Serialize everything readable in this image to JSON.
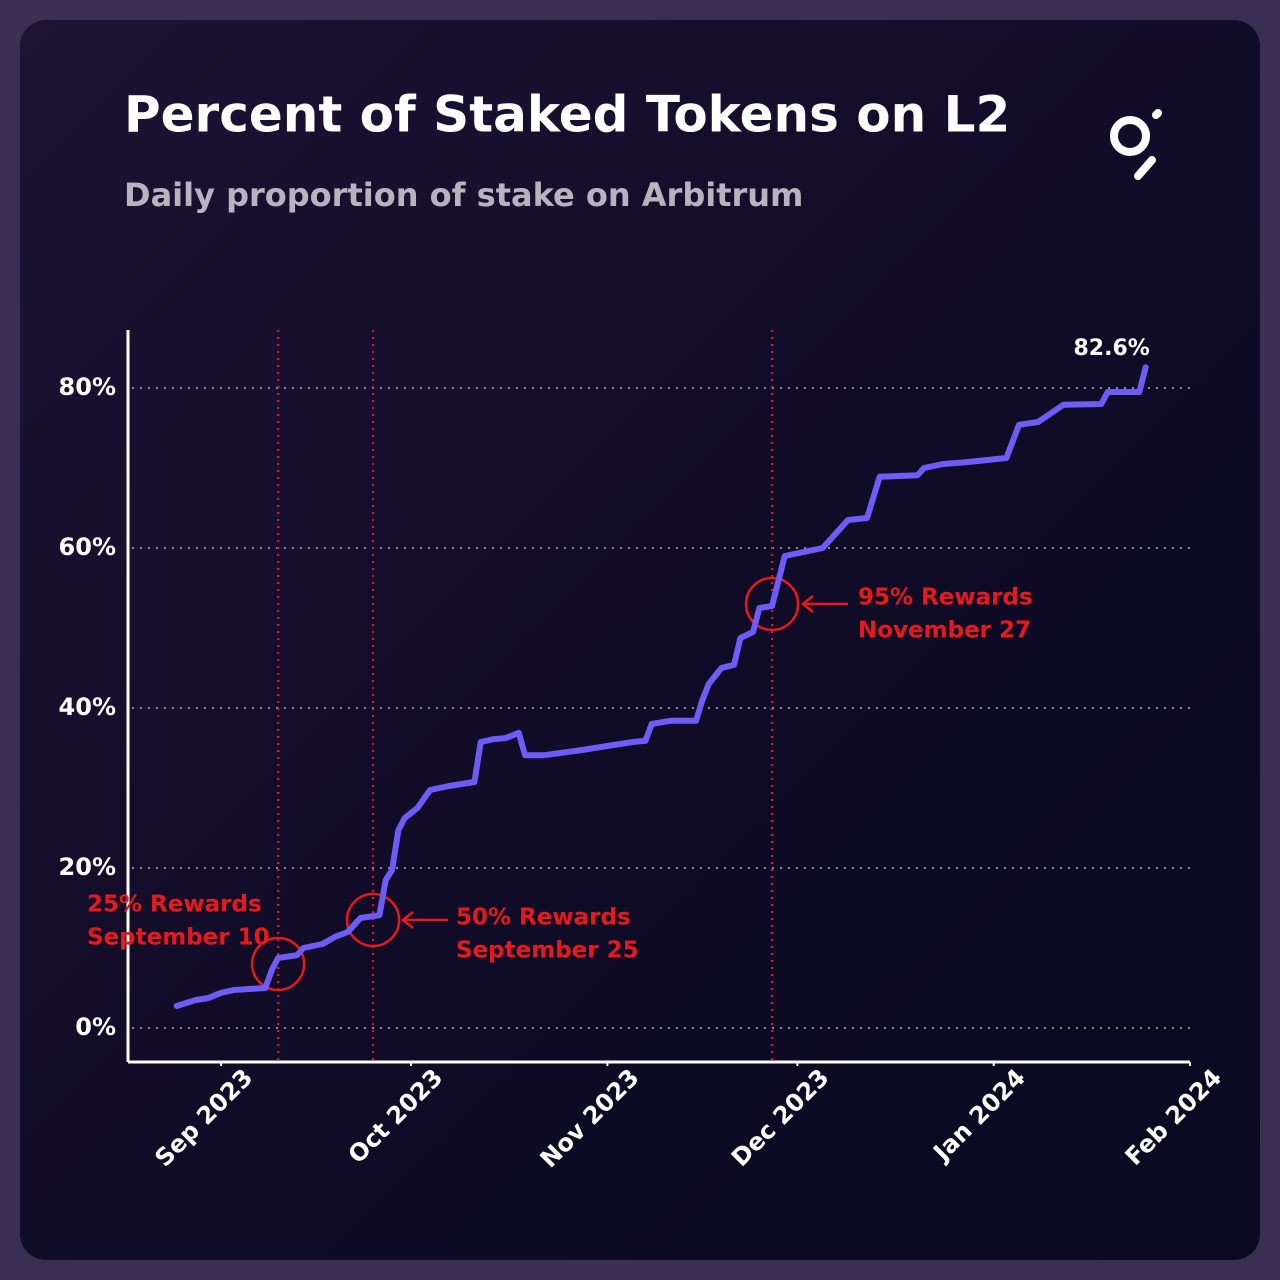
{
  "chart_data": {
    "type": "line",
    "title": "Percent of Staked Tokens on L2",
    "subtitle": "Daily proportion of stake on Arbitrum",
    "x": [
      -7,
      -4,
      -2,
      0,
      2,
      7,
      8,
      9,
      12,
      13,
      16,
      18,
      20,
      22,
      25,
      26,
      27,
      28,
      29,
      31,
      33,
      36,
      40,
      41,
      43,
      45,
      47,
      48,
      51,
      57,
      61,
      65,
      67,
      68,
      71,
      75,
      76,
      77,
      79,
      81,
      82,
      84,
      85,
      87,
      89,
      92,
      95,
      99,
      102,
      104,
      110,
      111,
      114,
      118,
      124,
      126,
      129,
      133,
      139,
      140,
      145,
      146
    ],
    "values": [
      2.75,
      3.5,
      3.75,
      4.4,
      4.75,
      5,
      7.25,
      8.75,
      9.1,
      10,
      10.5,
      11.4,
      12,
      13.75,
      14.1,
      18.5,
      19.75,
      24.75,
      26.25,
      27.5,
      29.75,
      30.25,
      30.75,
      35.75,
      36.1,
      36.25,
      36.9,
      34.1,
      34.1,
      34.75,
      35.25,
      35.75,
      35.9,
      38,
      38.4,
      38.4,
      41,
      43,
      45,
      45.4,
      48.75,
      49.5,
      52.5,
      52.75,
      59,
      59.5,
      60,
      63.5,
      63.75,
      68.9,
      69.1,
      70,
      70.5,
      70.75,
      71.25,
      75.4,
      75.75,
      77.9,
      78,
      79.5,
      79.5,
      82.6
    ],
    "value_labels": [
      null,
      null,
      null,
      null,
      null,
      null,
      null,
      null,
      null,
      null,
      null,
      null,
      null,
      null,
      null,
      null,
      null,
      null,
      null,
      null,
      null,
      null,
      null,
      null,
      null,
      null,
      null,
      null,
      null,
      null,
      null,
      null,
      null,
      null,
      null,
      null,
      null,
      null,
      null,
      null,
      null,
      null,
      null,
      null,
      null,
      null,
      null,
      null,
      null,
      null,
      null,
      null,
      null,
      null,
      null,
      null,
      null,
      null,
      null,
      null,
      null,
      "82.6%"
    ],
    "color": "#6e5cf6",
    "xlim": [
      -14.7,
      153
    ],
    "xticks": [
      {
        "value": 0,
        "label": "Sep 2023"
      },
      {
        "value": 30,
        "label": "Oct 2023"
      },
      {
        "value": 61,
        "label": "Nov 2023"
      },
      {
        "value": 91,
        "label": "Dec 2023"
      },
      {
        "value": 122,
        "label": "Jan 2024"
      },
      {
        "value": 153,
        "label": "Feb 2024"
      }
    ],
    "ylim": [
      -4.25,
      87.25
    ],
    "yticks": [
      {
        "value": 0,
        "label": "0%"
      },
      {
        "value": 20,
        "label": "20%"
      },
      {
        "value": 40,
        "label": "40%"
      },
      {
        "value": 60,
        "label": "60%"
      },
      {
        "value": 80,
        "label": "80%"
      }
    ],
    "grid": true,
    "annotations": [
      {
        "x": 9,
        "y": 8,
        "lines": [
          "25%  Rewards",
          "September 10"
        ]
      },
      {
        "x": 24,
        "y": 13.5,
        "lines": [
          "50%  Rewards",
          "September 25"
        ]
      },
      {
        "x": 87,
        "y": 53,
        "lines": [
          "95%  Rewards",
          "November 27"
        ]
      }
    ]
  }
}
